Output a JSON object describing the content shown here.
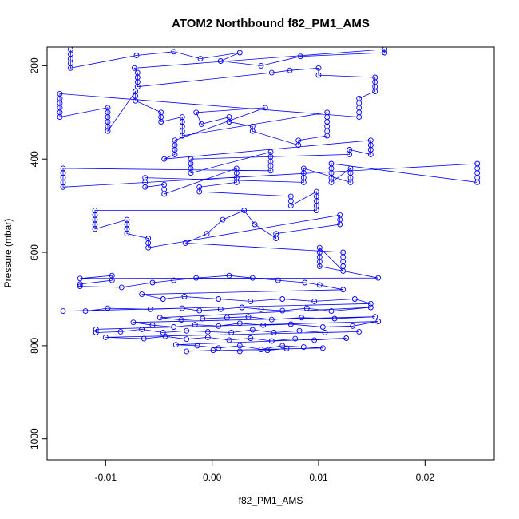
{
  "chart_data": {
    "type": "scatter",
    "title": "ATOM2 Northbound f82_PM1_AMS",
    "xlabel": "f82_PM1_AMS",
    "ylabel": "Pressure (mbar)",
    "xlim": [
      -0.0155,
      0.0265
    ],
    "ylim": [
      1045,
      160
    ],
    "y_reversed": true,
    "xticks": [
      -0.01,
      0.0,
      0.01,
      0.02
    ],
    "xtick_labels": [
      "-0.01",
      "0.00",
      "0.01",
      "0.02"
    ],
    "yticks": [
      200,
      400,
      600,
      800,
      1000
    ],
    "ytick_labels": [
      "200",
      "400",
      "600",
      "800",
      "1000"
    ],
    "grid": false,
    "legend": "none",
    "marker": "open-circle",
    "connected": true,
    "series": [
      {
        "color": "#0000ff",
        "points": [
          [
            -0.0133,
            165
          ],
          [
            -0.0133,
            175
          ],
          [
            -0.0133,
            185
          ],
          [
            -0.0133,
            195
          ],
          [
            -0.0133,
            205
          ],
          [
            -0.0071,
            178
          ],
          [
            -0.0036,
            170
          ],
          [
            -0.0011,
            185
          ],
          [
            0.0026,
            172
          ],
          [
            0.0008,
            190
          ],
          [
            0.0046,
            200
          ],
          [
            0.0083,
            180
          ],
          [
            0.0162,
            172
          ],
          [
            0.0162,
            165
          ],
          [
            -0.0073,
            205
          ],
          [
            -0.007,
            215
          ],
          [
            -0.007,
            225
          ],
          [
            -0.007,
            235
          ],
          [
            -0.007,
            245
          ],
          [
            0.0056,
            215
          ],
          [
            0.0073,
            210
          ],
          [
            0.01,
            205
          ],
          [
            0.01,
            220
          ],
          [
            0.0153,
            225
          ],
          [
            0.0153,
            235
          ],
          [
            0.0153,
            245
          ],
          [
            0.0153,
            255
          ],
          [
            0.0138,
            270
          ],
          [
            0.0138,
            280
          ],
          [
            0.0138,
            290
          ],
          [
            0.0138,
            300
          ],
          [
            0.0138,
            310
          ],
          [
            -0.0143,
            260
          ],
          [
            -0.0143,
            270
          ],
          [
            -0.0143,
            280
          ],
          [
            -0.0143,
            290
          ],
          [
            -0.0143,
            300
          ],
          [
            -0.0143,
            310
          ],
          [
            -0.0098,
            290
          ],
          [
            -0.0098,
            300
          ],
          [
            -0.0098,
            310
          ],
          [
            -0.0098,
            320
          ],
          [
            -0.0098,
            330
          ],
          [
            -0.0098,
            340
          ],
          [
            -0.0072,
            255
          ],
          [
            -0.0072,
            265
          ],
          [
            -0.0072,
            275
          ],
          [
            -0.0048,
            300
          ],
          [
            -0.0048,
            310
          ],
          [
            -0.0048,
            320
          ],
          [
            -0.0028,
            310
          ],
          [
            -0.0028,
            320
          ],
          [
            -0.0028,
            330
          ],
          [
            -0.0028,
            340
          ],
          [
            -0.0028,
            350
          ],
          [
            0.0108,
            300
          ],
          [
            0.0108,
            310
          ],
          [
            0.0108,
            320
          ],
          [
            0.0108,
            330
          ],
          [
            0.0108,
            340
          ],
          [
            0.0108,
            350
          ],
          [
            0.0081,
            360
          ],
          [
            0.0081,
            370
          ],
          [
            0.0038,
            340
          ],
          [
            0.0038,
            330
          ],
          [
            0.0016,
            320
          ],
          [
            0.0016,
            310
          ],
          [
            -0.001,
            325
          ],
          [
            -0.0015,
            300
          ],
          [
            0.005,
            290
          ],
          [
            -0.0035,
            360
          ],
          [
            -0.0035,
            370
          ],
          [
            -0.0035,
            380
          ],
          [
            -0.0035,
            390
          ],
          [
            -0.0045,
            400
          ],
          [
            0.0149,
            360
          ],
          [
            0.0149,
            370
          ],
          [
            0.0149,
            380
          ],
          [
            0.0149,
            390
          ],
          [
            0.0129,
            380
          ],
          [
            0.0129,
            390
          ],
          [
            -0.002,
            400
          ],
          [
            -0.002,
            410
          ],
          [
            -0.002,
            420
          ],
          [
            -0.002,
            430
          ],
          [
            0.0055,
            385
          ],
          [
            0.0055,
            395
          ],
          [
            0.0055,
            405
          ],
          [
            0.0055,
            415
          ],
          [
            0.0055,
            425
          ],
          [
            -0.014,
            420
          ],
          [
            -0.014,
            430
          ],
          [
            -0.014,
            440
          ],
          [
            -0.014,
            450
          ],
          [
            -0.014,
            460
          ],
          [
            0.0249,
            410
          ],
          [
            0.0249,
            420
          ],
          [
            0.0249,
            430
          ],
          [
            0.0249,
            440
          ],
          [
            0.0249,
            450
          ],
          [
            0.0112,
            410
          ],
          [
            0.0112,
            420
          ],
          [
            0.0112,
            430
          ],
          [
            0.0112,
            440
          ],
          [
            0.0112,
            450
          ],
          [
            0.013,
            420
          ],
          [
            0.013,
            430
          ],
          [
            0.013,
            440
          ],
          [
            0.013,
            450
          ],
          [
            0.0086,
            420
          ],
          [
            0.0086,
            430
          ],
          [
            0.0086,
            440
          ],
          [
            0.0086,
            450
          ],
          [
            -0.0063,
            440
          ],
          [
            -0.0063,
            450
          ],
          [
            -0.0063,
            460
          ],
          [
            -0.0045,
            455
          ],
          [
            -0.0045,
            465
          ],
          [
            -0.0045,
            475
          ],
          [
            0.0023,
            420
          ],
          [
            0.0023,
            430
          ],
          [
            0.0023,
            440
          ],
          [
            0.0023,
            450
          ],
          [
            -0.0012,
            460
          ],
          [
            -0.0012,
            470
          ],
          [
            0.0074,
            480
          ],
          [
            0.0074,
            490
          ],
          [
            0.0074,
            500
          ],
          [
            0.0098,
            470
          ],
          [
            0.0098,
            480
          ],
          [
            0.0098,
            490
          ],
          [
            0.0098,
            500
          ],
          [
            0.0098,
            510
          ],
          [
            -0.011,
            510
          ],
          [
            -0.011,
            520
          ],
          [
            -0.011,
            530
          ],
          [
            -0.011,
            540
          ],
          [
            -0.011,
            550
          ],
          [
            -0.008,
            530
          ],
          [
            -0.008,
            540
          ],
          [
            -0.008,
            550
          ],
          [
            -0.008,
            560
          ],
          [
            -0.006,
            570
          ],
          [
            -0.006,
            580
          ],
          [
            -0.006,
            590
          ],
          [
            0.012,
            520
          ],
          [
            0.012,
            530
          ],
          [
            0.012,
            540
          ],
          [
            0.006,
            560
          ],
          [
            0.006,
            570
          ],
          [
            0.004,
            540
          ],
          [
            0.003,
            510
          ],
          [
            0.001,
            530
          ],
          [
            -0.0005,
            560
          ],
          [
            -0.0025,
            580
          ],
          [
            0.0123,
            600
          ],
          [
            0.0123,
            610
          ],
          [
            0.0123,
            620
          ],
          [
            0.0123,
            630
          ],
          [
            0.0123,
            640
          ],
          [
            0.0101,
            590
          ],
          [
            0.0101,
            600
          ],
          [
            0.0101,
            610
          ],
          [
            0.0101,
            620
          ],
          [
            0.0101,
            630
          ],
          [
            0.0156,
            655
          ],
          [
            -0.0124,
            656
          ],
          [
            -0.0094,
            650
          ],
          [
            -0.0094,
            660
          ],
          [
            -0.0124,
            668
          ],
          [
            -0.0124,
            673
          ],
          [
            -0.0085,
            675
          ],
          [
            -0.0056,
            665
          ],
          [
            -0.0036,
            660
          ],
          [
            -0.0015,
            655
          ],
          [
            0.0016,
            650
          ],
          [
            0.0038,
            655
          ],
          [
            0.0062,
            660
          ],
          [
            0.0087,
            665
          ],
          [
            0.0101,
            670
          ],
          [
            0.0123,
            680
          ],
          [
            -0.0066,
            690
          ],
          [
            -0.0046,
            700
          ],
          [
            -0.0026,
            695
          ],
          [
            0.0006,
            700
          ],
          [
            0.0036,
            705
          ],
          [
            0.0066,
            700
          ],
          [
            0.0096,
            705
          ],
          [
            0.0134,
            700
          ],
          [
            0.0149,
            710
          ],
          [
            -0.014,
            726
          ],
          [
            -0.0119,
            726
          ],
          [
            -0.0098,
            720
          ],
          [
            -0.0058,
            722
          ],
          [
            -0.0028,
            720
          ],
          [
            -0.0012,
            725
          ],
          [
            0.0008,
            722
          ],
          [
            0.0028,
            718
          ],
          [
            0.0046,
            722
          ],
          [
            0.0066,
            725
          ],
          [
            0.0089,
            720
          ],
          [
            0.0112,
            726
          ],
          [
            0.0149,
            718
          ],
          [
            -0.0049,
            740
          ],
          [
            -0.0029,
            745
          ],
          [
            -0.0009,
            742
          ],
          [
            0.0014,
            740
          ],
          [
            0.0034,
            738
          ],
          [
            0.0056,
            744
          ],
          [
            0.0084,
            740
          ],
          [
            0.0115,
            742
          ],
          [
            0.0153,
            738
          ],
          [
            -0.0074,
            750
          ],
          [
            -0.0056,
            756
          ],
          [
            -0.0036,
            760
          ],
          [
            -0.0016,
            755
          ],
          [
            0.0006,
            758
          ],
          [
            0.0026,
            752
          ],
          [
            0.0048,
            756
          ],
          [
            0.0074,
            754
          ],
          [
            0.0104,
            760
          ],
          [
            0.0132,
            758
          ],
          [
            0.0156,
            748
          ],
          [
            -0.0109,
            765
          ],
          [
            -0.0109,
            772
          ],
          [
            -0.0086,
            770
          ],
          [
            -0.0066,
            765
          ],
          [
            -0.0046,
            772
          ],
          [
            -0.0024,
            768
          ],
          [
            -0.0004,
            770
          ],
          [
            0.0018,
            772
          ],
          [
            0.0038,
            766
          ],
          [
            0.0058,
            772
          ],
          [
            0.0082,
            768
          ],
          [
            0.0106,
            772
          ],
          [
            0.0138,
            770
          ],
          [
            -0.01,
            782
          ],
          [
            -0.0064,
            785
          ],
          [
            -0.0044,
            780
          ],
          [
            -0.0024,
            786
          ],
          [
            -0.0004,
            782
          ],
          [
            0.0016,
            788
          ],
          [
            0.0036,
            784
          ],
          [
            0.0056,
            790
          ],
          [
            0.0078,
            785
          ],
          [
            0.0096,
            788
          ],
          [
            0.0126,
            784
          ],
          [
            -0.0034,
            798
          ],
          [
            -0.0014,
            800
          ],
          [
            0.0006,
            805
          ],
          [
            0.0026,
            800
          ],
          [
            0.0046,
            808
          ],
          [
            0.0066,
            800
          ],
          [
            0.0086,
            803
          ],
          [
            0.0104,
            805
          ],
          [
            -0.0024,
            812
          ],
          [
            0.0001,
            810
          ],
          [
            0.0026,
            812
          ],
          [
            0.0052,
            810
          ],
          [
            0.007,
            806
          ]
        ]
      }
    ]
  }
}
